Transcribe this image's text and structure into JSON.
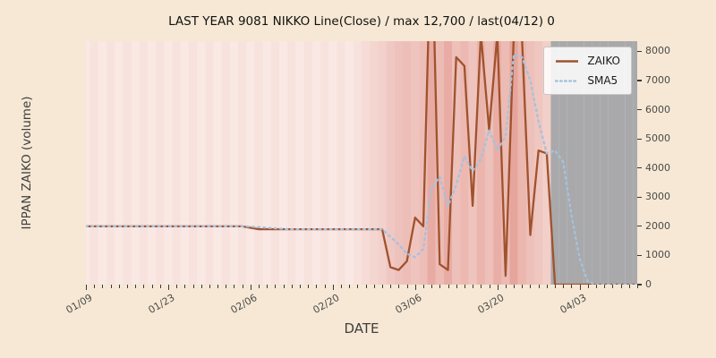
{
  "chart_data": {
    "type": "line",
    "title": "LAST YEAR 9081 NIKKO Line(Close) / max 12,700 / last(04/12) 0",
    "xlabel": "DATE",
    "ylabel": "IPPAN ZAIKO (volume)",
    "ylim": [
      0,
      8350
    ],
    "yticks": [
      0,
      1000,
      2000,
      3000,
      4000,
      5000,
      6000,
      7000,
      8000
    ],
    "xticks": [
      "01/09",
      "01/23",
      "02/06",
      "02/20",
      "03/06",
      "03/20",
      "04/03"
    ],
    "xtick_positions": [
      0,
      10,
      20,
      30,
      40,
      50,
      60
    ],
    "legend_position": "upper right",
    "grid": false,
    "colors": {
      "figure_bg": "#f6e8d4",
      "plot_bg": "#fdf2ef",
      "band_red": "#cb4d3e",
      "gray_band": "#a9a9ab",
      "zaiko": "#a0522d",
      "sma5": "#a4c2de"
    },
    "dates": [
      "01/09",
      "01/10",
      "01/11",
      "01/12",
      "01/13",
      "01/16",
      "01/17",
      "01/18",
      "01/19",
      "01/20",
      "01/23",
      "01/24",
      "01/25",
      "01/26",
      "01/27",
      "01/30",
      "01/31",
      "02/01",
      "02/02",
      "02/03",
      "02/06",
      "02/07",
      "02/08",
      "02/09",
      "02/10",
      "02/13",
      "02/14",
      "02/15",
      "02/16",
      "02/17",
      "02/20",
      "02/21",
      "02/22",
      "02/23",
      "02/24",
      "02/27",
      "02/28",
      "03/01",
      "03/02",
      "03/03",
      "03/06",
      "03/07",
      "03/08",
      "03/09",
      "03/10",
      "03/13",
      "03/14",
      "03/15",
      "03/16",
      "03/17",
      "03/20",
      "03/21",
      "03/22",
      "03/23",
      "03/24",
      "03/27",
      "03/28",
      "03/29",
      "03/30",
      "03/31",
      "04/03",
      "04/04",
      "04/05",
      "04/06",
      "04/07",
      "04/10",
      "04/11",
      "04/12"
    ],
    "series": [
      {
        "name": "ZAIKO",
        "color": "#a0522d",
        "style": "solid",
        "values": [
          2000,
          2000,
          2000,
          2000,
          2000,
          2000,
          2000,
          2000,
          2000,
          2000,
          2000,
          2000,
          2000,
          2000,
          2000,
          2000,
          2000,
          2000,
          2000,
          2000,
          1950,
          1900,
          1900,
          1900,
          1900,
          1900,
          1900,
          1900,
          1900,
          1900,
          1900,
          1900,
          1900,
          1900,
          1900,
          1900,
          1900,
          600,
          500,
          800,
          2300,
          2000,
          12700,
          700,
          500,
          7800,
          7500,
          2700,
          8600,
          5300,
          8600,
          300,
          8600,
          8400,
          1700,
          4600,
          4500,
          0,
          0,
          0,
          0,
          0,
          0,
          0,
          0,
          0,
          0,
          0
        ]
      },
      {
        "name": "SMA5",
        "color": "#a4c2de",
        "style": "dotted",
        "values": [
          2000,
          2000,
          2000,
          2000,
          2000,
          2000,
          2000,
          2000,
          2000,
          2000,
          2000,
          2000,
          2000,
          2000,
          2000,
          2000,
          2000,
          2000,
          2000,
          2000,
          1990,
          1970,
          1950,
          1930,
          1910,
          1900,
          1900,
          1900,
          1900,
          1900,
          1900,
          1900,
          1900,
          1900,
          1900,
          1900,
          1900,
          1640,
          1380,
          1060,
          940,
          1220,
          3300,
          3700,
          2700,
          3400,
          4400,
          3900,
          4300,
          5300,
          4600,
          5100,
          7900,
          7800,
          7000,
          5600,
          4500,
          4600,
          4200,
          2400,
          900,
          100,
          0,
          0,
          0,
          0,
          0,
          0
        ]
      }
    ],
    "band_heat": [
      0.1,
      0.16,
      0.1,
      0.16,
      0.1,
      0.16,
      0.1,
      0.16,
      0.1,
      0.16,
      0.1,
      0.16,
      0.1,
      0.16,
      0.1,
      0.16,
      0.1,
      0.16,
      0.1,
      0.16,
      0.1,
      0.16,
      0.1,
      0.16,
      0.1,
      0.16,
      0.1,
      0.16,
      0.1,
      0.16,
      0.1,
      0.16,
      0.1,
      0.16,
      0.22,
      0.28,
      0.34,
      0.42,
      0.48,
      0.52,
      0.46,
      0.52,
      0.72,
      0.55,
      0.7,
      0.5,
      0.58,
      0.46,
      0.62,
      0.5,
      0.68,
      0.55,
      0.78,
      0.6,
      0.5,
      0.44,
      0.36,
      -1,
      -1,
      -1,
      -1,
      -1,
      -1,
      -1,
      -1,
      -1,
      -1,
      -1
    ]
  }
}
